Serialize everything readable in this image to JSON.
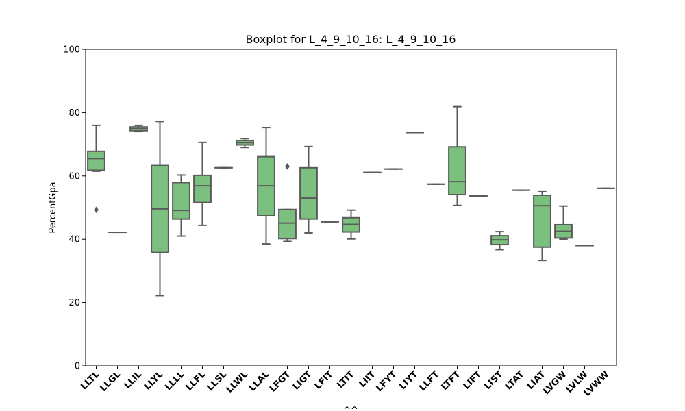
{
  "chart_data": {
    "type": "box",
    "title": "Boxplot for L_4_9_10_16: L_4_9_10_16",
    "xlabel": "^^",
    "ylabel": "PercentGpa",
    "ylim": [
      0,
      100
    ],
    "yticks": [
      0,
      20,
      40,
      60,
      80,
      100
    ],
    "box_color": "#7cc07f",
    "line_color": "#5a5a5a",
    "grid": false,
    "categories": [
      "LLTL",
      "LLGL",
      "LLIL",
      "LLYL",
      "LLLL",
      "LLFL",
      "LLSL",
      "LLWL",
      "LLAL",
      "LFGT",
      "LIGT",
      "LFIT",
      "LTIT",
      "LIIT",
      "LFYT",
      "LIYT",
      "LLFT",
      "LTFT",
      "LIFT",
      "LIST",
      "LTAT",
      "LIAT",
      "LVGW",
      "LVLW",
      "LVWW"
    ],
    "boxes": [
      {
        "whislo": 61.5,
        "q1": 61.8,
        "med": 65.5,
        "q3": 67.8,
        "whishi": 76.0,
        "fliers": [
          49.3
        ]
      },
      {
        "whislo": 42.2,
        "q1": 42.2,
        "med": 42.2,
        "q3": 42.2,
        "whishi": 42.2,
        "fliers": []
      },
      {
        "whislo": 74.0,
        "q1": 74.3,
        "med": 75.0,
        "q3": 75.5,
        "whishi": 76.0,
        "fliers": []
      },
      {
        "whislo": 22.2,
        "q1": 35.8,
        "med": 49.6,
        "q3": 63.3,
        "whishi": 77.2,
        "fliers": []
      },
      {
        "whislo": 41.0,
        "q1": 46.4,
        "med": 49.1,
        "q3": 57.9,
        "whishi": 60.3,
        "fliers": []
      },
      {
        "whislo": 44.4,
        "q1": 51.6,
        "med": 56.9,
        "q3": 60.2,
        "whishi": 70.6,
        "fliers": []
      },
      {
        "whislo": 62.6,
        "q1": 62.6,
        "med": 62.6,
        "q3": 62.6,
        "whishi": 62.6,
        "fliers": []
      },
      {
        "whislo": 69.0,
        "q1": 69.8,
        "med": 70.5,
        "q3": 71.2,
        "whishi": 71.8,
        "fliers": []
      },
      {
        "whislo": 38.5,
        "q1": 47.4,
        "med": 56.9,
        "q3": 66.1,
        "whishi": 75.3,
        "fliers": []
      },
      {
        "whislo": 39.3,
        "q1": 40.2,
        "med": 45.1,
        "q3": 49.4,
        "whishi": 49.4,
        "fliers": [
          63.0
        ]
      },
      {
        "whislo": 42.0,
        "q1": 46.4,
        "med": 53.0,
        "q3": 62.6,
        "whishi": 69.3,
        "fliers": []
      },
      {
        "whislo": 45.5,
        "q1": 45.5,
        "med": 45.5,
        "q3": 45.5,
        "whishi": 45.5,
        "fliers": []
      },
      {
        "whislo": 40.1,
        "q1": 42.3,
        "med": 44.7,
        "q3": 46.8,
        "whishi": 49.2,
        "fliers": []
      },
      {
        "whislo": 61.1,
        "q1": 61.1,
        "med": 61.1,
        "q3": 61.1,
        "whishi": 61.1,
        "fliers": []
      },
      {
        "whislo": 62.2,
        "q1": 62.2,
        "med": 62.2,
        "q3": 62.2,
        "whishi": 62.2,
        "fliers": []
      },
      {
        "whislo": 73.7,
        "q1": 73.7,
        "med": 73.7,
        "q3": 73.7,
        "whishi": 73.7,
        "fliers": []
      },
      {
        "whislo": 57.4,
        "q1": 57.4,
        "med": 57.4,
        "q3": 57.4,
        "whishi": 57.4,
        "fliers": []
      },
      {
        "whislo": 50.7,
        "q1": 54.1,
        "med": 58.2,
        "q3": 69.2,
        "whishi": 81.9,
        "fliers": []
      },
      {
        "whislo": 53.7,
        "q1": 53.7,
        "med": 53.7,
        "q3": 53.7,
        "whishi": 53.7,
        "fliers": []
      },
      {
        "whislo": 36.7,
        "q1": 38.3,
        "med": 39.8,
        "q3": 41.1,
        "whishi": 42.4,
        "fliers": []
      },
      {
        "whislo": 55.5,
        "q1": 55.5,
        "med": 55.5,
        "q3": 55.5,
        "whishi": 55.5,
        "fliers": []
      },
      {
        "whislo": 33.3,
        "q1": 37.5,
        "med": 50.6,
        "q3": 53.9,
        "whishi": 55.0,
        "fliers": []
      },
      {
        "whislo": 40.0,
        "q1": 40.4,
        "med": 42.5,
        "q3": 44.6,
        "whishi": 50.5,
        "fliers": []
      },
      {
        "whislo": 38.0,
        "q1": 38.0,
        "med": 38.0,
        "q3": 38.0,
        "whishi": 38.0,
        "fliers": []
      },
      {
        "whislo": 56.1,
        "q1": 56.1,
        "med": 56.1,
        "q3": 56.1,
        "whishi": 56.1,
        "fliers": []
      }
    ]
  }
}
